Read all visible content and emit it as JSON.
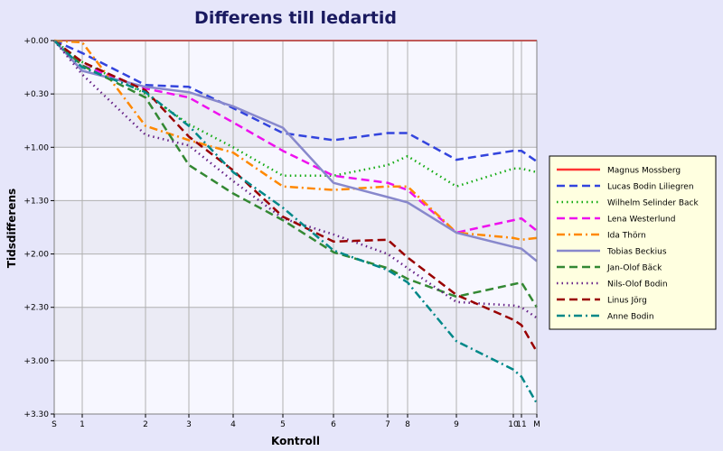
{
  "chart_data": {
    "type": "line",
    "title": "Differens till ledartid",
    "xlabel": "Kontroll",
    "ylabel": "Tidsdifferens",
    "categories": [
      "S",
      "1",
      "2",
      "3",
      "4",
      "5",
      "6",
      "7",
      "8",
      "9",
      "10",
      "11",
      "M"
    ],
    "y_tick_labels": [
      "+0.00",
      "+0.30",
      "+1.00",
      "+1.30",
      "+2.00",
      "+2.30",
      "+3.00",
      "+3.30"
    ],
    "ylim": [
      0,
      210
    ],
    "y_unit": "seconds behind leader",
    "grid": true,
    "legend_position": "right",
    "series": [
      {
        "name": "Magnus Mossberg",
        "color": "#ff3333",
        "dash": "solid",
        "values": [
          0,
          0,
          0,
          0,
          0,
          0,
          0,
          0,
          0,
          0,
          0,
          0,
          0
        ]
      },
      {
        "name": "Lucas Bodin Liliegren",
        "color": "#3344dd",
        "dash": "dash",
        "values": [
          0,
          7,
          25,
          26,
          38,
          52,
          56,
          52,
          52,
          67,
          62,
          62,
          68
        ]
      },
      {
        "name": "Wilhelm Selinder Back",
        "color": "#11aa11",
        "dash": "dot",
        "values": [
          0,
          12,
          30,
          47,
          60,
          76,
          76,
          70,
          65,
          82,
          72,
          72,
          74
        ]
      },
      {
        "name": "Lena Westerlund",
        "color": "#ee11ee",
        "dash": "dash",
        "values": [
          0,
          14,
          27,
          32,
          46,
          62,
          76,
          80,
          84,
          108,
          101,
          100,
          107
        ]
      },
      {
        "name": "Ida Thörn",
        "color": "#ff8800",
        "dash": "dashdot",
        "values": [
          0,
          1,
          48,
          56,
          63,
          82,
          84,
          82,
          82,
          108,
          111,
          112,
          111
        ]
      },
      {
        "name": "Tobias Beckius",
        "color": "#8888cc",
        "dash": "solid",
        "values": [
          0,
          17,
          26,
          29,
          37,
          49,
          80,
          88,
          91,
          108,
          116,
          117,
          124
        ]
      },
      {
        "name": "Jan-Olof Bäck",
        "color": "#338833",
        "dash": "dash",
        "values": [
          0,
          14,
          32,
          70,
          86,
          101,
          119,
          128,
          134,
          144,
          137,
          136,
          150
        ]
      },
      {
        "name": "Nils-Olof Bodin",
        "color": "#662288",
        "dash": "dot",
        "values": [
          0,
          19,
          53,
          59,
          79,
          100,
          109,
          120,
          128,
          147,
          149,
          150,
          156
        ]
      },
      {
        "name": "Linus Jörg",
        "color": "#990000",
        "dash": "dash",
        "values": [
          0,
          12,
          28,
          54,
          73,
          99,
          113,
          112,
          122,
          143,
          157,
          160,
          175
        ]
      },
      {
        "name": "Anne Bodin",
        "color": "#008888",
        "dash": "dashdot",
        "values": [
          0,
          15,
          29,
          48,
          74,
          94,
          118,
          129,
          136,
          169,
          185,
          189,
          204
        ]
      }
    ]
  }
}
